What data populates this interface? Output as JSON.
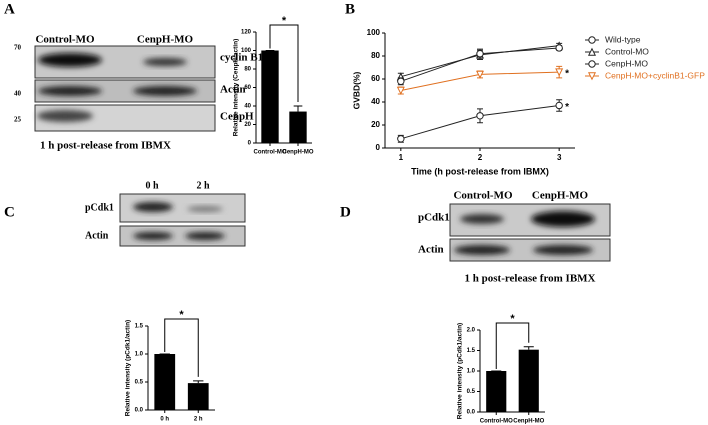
{
  "chart_data": [
    {
      "type": "bar",
      "ylabel": "Relative intensity (CenpH/actin)",
      "categories": [
        "Control-MO",
        "CenpH-MO"
      ],
      "values": [
        100,
        34
      ],
      "errors": [
        0,
        6
      ],
      "color": "#000000",
      "ylim": [
        0,
        120
      ],
      "yticks": [
        0,
        20,
        40,
        60,
        80,
        100,
        120
      ],
      "significance": "*"
    },
    {
      "type": "line",
      "xlabel": "Time (h post-release from IBMX)",
      "ylabel": "GVBD(%)",
      "x": [
        1,
        2,
        3
      ],
      "xlim": [
        0.8,
        3.2
      ],
      "xticks": [
        1,
        2,
        3
      ],
      "ylim": [
        0,
        100
      ],
      "yticks": [
        0,
        20,
        40,
        60,
        80,
        100
      ],
      "legend": "upper right",
      "series": [
        {
          "name": "Wild-type",
          "color": "#222222",
          "marker": "circle",
          "values": [
            8,
            28,
            37
          ],
          "errors": [
            3,
            6,
            5
          ],
          "end_label": "*"
        },
        {
          "name": "Control-MO",
          "color": "#222222",
          "marker": "triangle-up",
          "values": [
            62,
            81,
            89
          ],
          "errors": [
            3,
            4,
            2
          ]
        },
        {
          "name": "CenpH-MO",
          "color": "#222222",
          "marker": "circle",
          "values": [
            58,
            82,
            87
          ],
          "errors": [
            3,
            4,
            2
          ]
        },
        {
          "name": "CenpH-MO+cyclinB1-GFP",
          "color": "#e07020",
          "marker": "triangle-down",
          "values": [
            50,
            64,
            66
          ],
          "errors": [
            3,
            3,
            5
          ],
          "end_label": "*"
        }
      ]
    },
    {
      "type": "bar",
      "ylabel": "Relative intensity (pCdk1/actin)",
      "categories": [
        "0 h",
        "2 h"
      ],
      "values": [
        1.0,
        0.48
      ],
      "errors": [
        0,
        0.04
      ],
      "color": "#000000",
      "ylim": [
        0,
        1.5
      ],
      "yticks": [
        {
          "value": 0,
          "label": "0.0"
        },
        0.5,
        {
          "value": 1,
          "label": "1.0"
        },
        1.5
      ],
      "significance": "*"
    },
    {
      "type": "bar",
      "ylabel": "Relative intensity (pCdk1/actin)",
      "categories": [
        "Control-MO",
        "CenpH-MO"
      ],
      "values": [
        1.0,
        1.52
      ],
      "errors": [
        0,
        0.07
      ],
      "color": "#000000",
      "ylim": [
        0,
        2.0
      ],
      "yticks": [
        {
          "value": 0,
          "label": "0.0"
        },
        0.5,
        {
          "value": 1,
          "label": "1.0"
        },
        1.5,
        {
          "value": 2,
          "label": "2.0"
        }
      ],
      "significance": "*"
    }
  ],
  "blots": {
    "a": {
      "letter": "A",
      "lanes": [
        "Control-MO",
        "CenpH-MO"
      ],
      "rows": [
        "cyclin B1",
        "Actin",
        "CenpH"
      ],
      "markers": [
        "70",
        "40",
        "25"
      ],
      "caption": "1 h post-release from IBMX"
    },
    "b": {
      "letter": "B"
    },
    "c": {
      "letter": "C",
      "lanes": [
        "0 h",
        "2 h"
      ],
      "rows": [
        "pCdk1",
        "Actin"
      ]
    },
    "d": {
      "letter": "D",
      "lanes": [
        "Control-MO",
        "CenpH-MO"
      ],
      "rows": [
        "pCdk1",
        "Actin"
      ],
      "caption": "1 h post-release from IBMX"
    }
  }
}
